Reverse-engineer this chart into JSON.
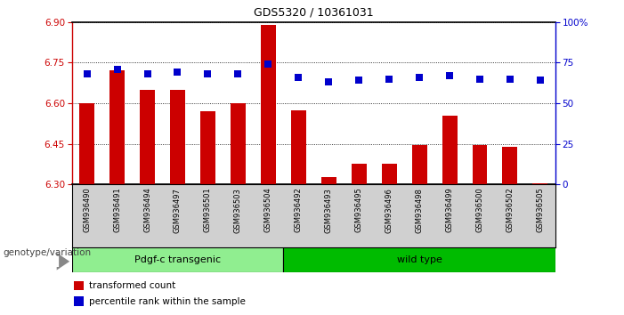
{
  "title": "GDS5320 / 10361031",
  "samples": [
    "GSM936490",
    "GSM936491",
    "GSM936494",
    "GSM936497",
    "GSM936501",
    "GSM936503",
    "GSM936504",
    "GSM936492",
    "GSM936493",
    "GSM936495",
    "GSM936496",
    "GSM936498",
    "GSM936499",
    "GSM936500",
    "GSM936502",
    "GSM936505"
  ],
  "red_values": [
    6.6,
    6.72,
    6.65,
    6.65,
    6.57,
    6.6,
    6.89,
    6.575,
    6.325,
    6.375,
    6.375,
    6.445,
    6.555,
    6.445,
    6.44,
    6.305
  ],
  "blue_values": [
    68,
    71,
    68,
    69,
    68,
    68,
    74,
    66,
    63,
    64,
    65,
    66,
    67,
    65,
    65,
    64
  ],
  "group1_label": "Pdgf-c transgenic",
  "group2_label": "wild type",
  "group1_count": 7,
  "group2_count": 9,
  "ylim_left": [
    6.3,
    6.9
  ],
  "ylim_right": [
    0,
    100
  ],
  "yticks_left": [
    6.3,
    6.45,
    6.6,
    6.75,
    6.9
  ],
  "yticks_right": [
    0,
    25,
    50,
    75,
    100
  ],
  "bar_color": "#CC0000",
  "dot_color": "#0000CC",
  "group1_bg": "#90EE90",
  "group2_bg": "#00BB00",
  "tick_label_bg": "#D0D0D0",
  "arrow_color": "#888888",
  "label_color": "#444444",
  "grid_color": "#000000",
  "axis_label_color_left": "#CC0000",
  "axis_label_color_right": "#0000CC",
  "bar_width": 0.5,
  "dot_size": 30,
  "legend_red_label": "transformed count",
  "legend_blue_label": "percentile rank within the sample",
  "genotype_label": "genotype/variation",
  "background_color": "#FFFFFF",
  "plot_bg_color": "#FFFFFF"
}
